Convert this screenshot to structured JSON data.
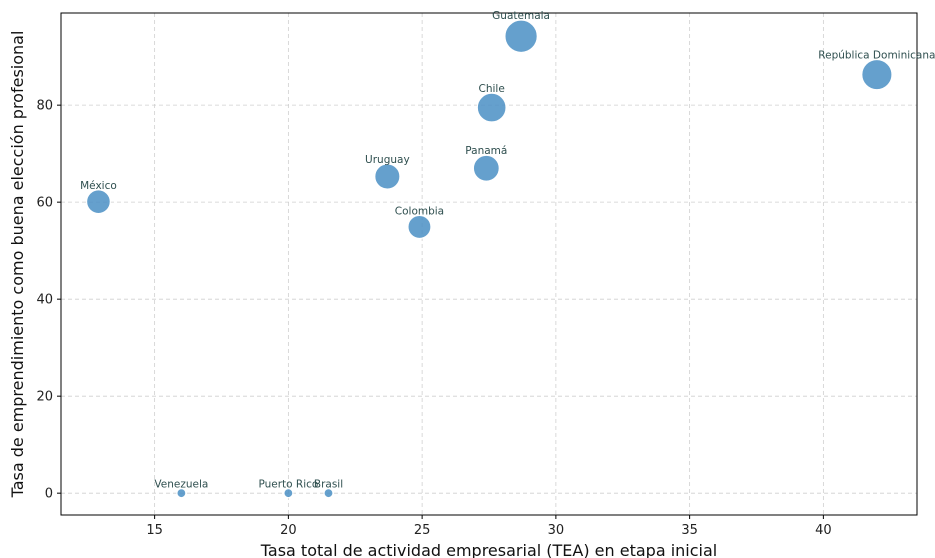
{
  "chart_data": {
    "type": "scatter",
    "xlabel": "Tasa total de actividad empresarial (TEA) en etapa inicial",
    "ylabel": "Tasa de emprendimiento como buena elección profesional",
    "xlim": [
      11.5,
      43.5
    ],
    "ylim": [
      -4.5,
      99
    ],
    "xticks": [
      15,
      20,
      25,
      30,
      35,
      40
    ],
    "yticks": [
      0,
      20,
      40,
      60,
      80
    ],
    "grid": true,
    "point_color": "#4a8fc4",
    "points": [
      {
        "label": "Guatemala",
        "x": 28.7,
        "y": 94.2,
        "size": 45
      },
      {
        "label": "República Dominicana",
        "x": 42.0,
        "y": 86.3,
        "size": 42
      },
      {
        "label": "Chile",
        "x": 27.6,
        "y": 79.5,
        "size": 40
      },
      {
        "label": "Panamá",
        "x": 27.4,
        "y": 67.0,
        "size": 36
      },
      {
        "label": "Uruguay",
        "x": 23.7,
        "y": 65.3,
        "size": 35
      },
      {
        "label": "México",
        "x": 12.9,
        "y": 60.1,
        "size": 33
      },
      {
        "label": "Colombia",
        "x": 24.9,
        "y": 54.9,
        "size": 32
      },
      {
        "label": "Venezuela",
        "x": 16.0,
        "y": 0.0,
        "size": 6
      },
      {
        "label": "Puerto Rico",
        "x": 20.0,
        "y": 0.0,
        "size": 6
      },
      {
        "label": "Brasil",
        "x": 21.5,
        "y": 0.0,
        "size": 6
      }
    ]
  }
}
